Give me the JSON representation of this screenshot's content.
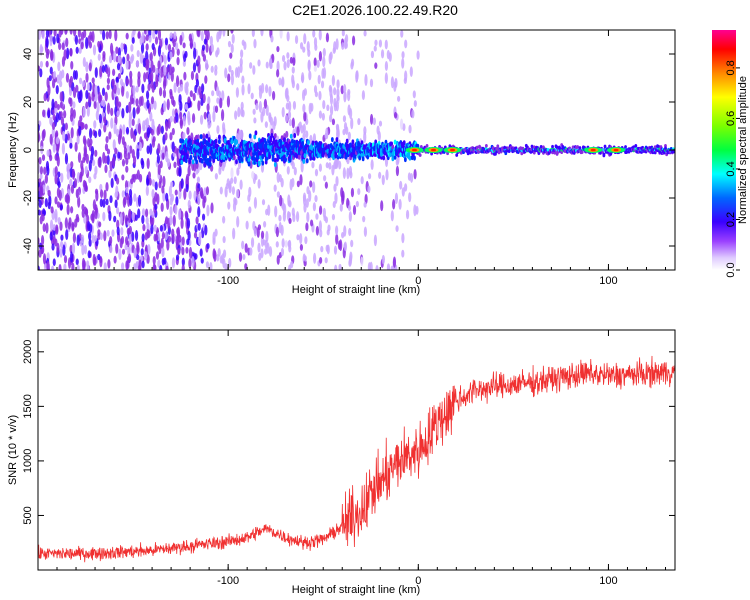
{
  "figure_title": "C2E1.2026.100.22.49.R20",
  "chart_data": [
    {
      "type": "heatmap",
      "title": "",
      "xlabel": "Height of straight line (km)",
      "ylabel": "Frequency (Hz)",
      "xlim": [
        -200,
        135
      ],
      "ylim": [
        -50,
        50
      ],
      "x_ticks": [
        -100,
        0,
        100
      ],
      "x_tick_labels": [
        "-100",
        "0",
        "100"
      ],
      "y_ticks": [
        -40,
        -20,
        0,
        20,
        40
      ],
      "y_tick_labels": [
        "-40",
        "-20",
        "0",
        "20",
        "40"
      ],
      "colorbar": {
        "label": "Normalized spectral amplitude",
        "range": [
          0,
          0.95
        ],
        "ticks": [
          0,
          0.2,
          0.4,
          0.6,
          0.8
        ],
        "tick_labels": [
          "0.0",
          "0.2",
          "0.4",
          "0.6",
          "0.8"
        ],
        "colormap": [
          "#e6d8ff",
          "#c9a6ff",
          "#8a2be2",
          "#3a00ff",
          "#0030ff",
          "#00b0ff",
          "#00ffff",
          "#00ff60",
          "#9cff00",
          "#ffff00",
          "#ff9900",
          "#ff2000",
          "#ff0080"
        ]
      },
      "description_values": {
        "noise_region_x": [
          -200,
          -35
        ],
        "transition_x": [
          -35,
          0
        ],
        "band_center_hz": 0,
        "band_halfwidth_hz": 2.5,
        "hotspots_x": [
          -2,
          8,
          18,
          92,
          104
        ]
      }
    },
    {
      "type": "line",
      "title": "",
      "xlabel": "Height of straight line (km)",
      "ylabel": "SNR (10 * v/v)",
      "xlim": [
        -200,
        135
      ],
      "ylim": [
        0,
        2200
      ],
      "x_ticks": [
        -100,
        0,
        100
      ],
      "x_tick_labels": [
        "-100",
        "0",
        "100"
      ],
      "y_ticks": [
        500,
        1000,
        1500,
        2000
      ],
      "y_tick_labels": [
        "500",
        "1000",
        "1500",
        "2000"
      ],
      "color": "#f03030",
      "series": [
        {
          "name": "SNR",
          "x": [
            -200,
            -180,
            -160,
            -140,
            -120,
            -100,
            -90,
            -80,
            -70,
            -60,
            -50,
            -40,
            -30,
            -25,
            -20,
            -15,
            -10,
            -5,
            0,
            5,
            10,
            15,
            20,
            25,
            30,
            40,
            50,
            60,
            70,
            80,
            90,
            100,
            110,
            120,
            135
          ],
          "values": [
            150,
            150,
            160,
            180,
            220,
            260,
            300,
            380,
            300,
            250,
            280,
            400,
            550,
            700,
            800,
            900,
            1000,
            1050,
            1100,
            1200,
            1350,
            1450,
            1550,
            1600,
            1650,
            1680,
            1700,
            1720,
            1750,
            1780,
            1800,
            1780,
            1790,
            1800,
            1820
          ]
        }
      ]
    }
  ]
}
